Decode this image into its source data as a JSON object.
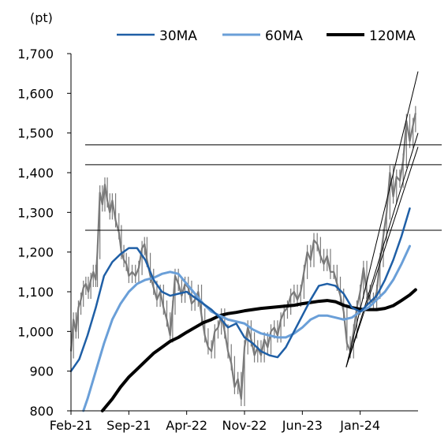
{
  "chart_data": {
    "type": "line",
    "unit_label": "(pt)",
    "y_ticks": [
      "800",
      "900",
      "1,000",
      "1,100",
      "1,200",
      "1,300",
      "1,400",
      "1,500",
      "1,600",
      "1,700"
    ],
    "ylim": [
      800,
      1700
    ],
    "x_tick_labels": [
      "Feb-21",
      "Sep-21",
      "Apr-22",
      "Nov-22",
      "Jun-23",
      "Jan-24"
    ],
    "x_tick_values": [
      0,
      7,
      14,
      21,
      28,
      35
    ],
    "xlim": [
      0,
      42
    ],
    "legend": [
      {
        "name": "30MA",
        "color": "#1f5fa6",
        "width": 2.5
      },
      {
        "name": "60MA",
        "color": "#6a9fd8",
        "width": 3
      },
      {
        "name": "120MA",
        "color": "#000000",
        "width": 4
      }
    ],
    "price": [
      [
        0,
        950
      ],
      [
        0.3,
        1030
      ],
      [
        0.6,
        1000
      ],
      [
        0.9,
        1060
      ],
      [
        1.2,
        1080
      ],
      [
        1.5,
        1110
      ],
      [
        1.8,
        1120
      ],
      [
        2.1,
        1100
      ],
      [
        2.4,
        1130
      ],
      [
        2.7,
        1150
      ],
      [
        3.0,
        1130
      ],
      [
        3.2,
        1200
      ],
      [
        3.5,
        1350
      ],
      [
        3.8,
        1320
      ],
      [
        4.1,
        1370
      ],
      [
        4.4,
        1330
      ],
      [
        4.7,
        1300
      ],
      [
        5.0,
        1330
      ],
      [
        5.4,
        1280
      ],
      [
        5.8,
        1250
      ],
      [
        6.1,
        1200
      ],
      [
        6.4,
        1180
      ],
      [
        6.7,
        1170
      ],
      [
        7.0,
        1140
      ],
      [
        7.4,
        1150
      ],
      [
        7.8,
        1140
      ],
      [
        8.2,
        1160
      ],
      [
        8.6,
        1210
      ],
      [
        8.9,
        1220
      ],
      [
        9.2,
        1180
      ],
      [
        9.6,
        1140
      ],
      [
        10.0,
        1110
      ],
      [
        10.4,
        1080
      ],
      [
        10.8,
        1100
      ],
      [
        11.2,
        1060
      ],
      [
        11.6,
        1030
      ],
      [
        12.0,
        990
      ],
      [
        12.3,
        1060
      ],
      [
        12.6,
        1140
      ],
      [
        13.0,
        1120
      ],
      [
        13.4,
        1090
      ],
      [
        13.8,
        1120
      ],
      [
        14.2,
        1110
      ],
      [
        14.6,
        1070
      ],
      [
        15.0,
        1080
      ],
      [
        15.4,
        1100
      ],
      [
        15.8,
        1040
      ],
      [
        16.2,
        990
      ],
      [
        16.6,
        960
      ],
      [
        17.0,
        950
      ],
      [
        17.4,
        1000
      ],
      [
        17.8,
        1010
      ],
      [
        18.2,
        1040
      ],
      [
        18.6,
        1000
      ],
      [
        19.0,
        950
      ],
      [
        19.4,
        920
      ],
      [
        19.8,
        860
      ],
      [
        20.2,
        880
      ],
      [
        20.6,
        830
      ],
      [
        21.0,
        960
      ],
      [
        21.4,
        1010
      ],
      [
        21.8,
        980
      ],
      [
        22.2,
        940
      ],
      [
        22.6,
        960
      ],
      [
        23.0,
        940
      ],
      [
        23.4,
        980
      ],
      [
        23.8,
        960
      ],
      [
        24.2,
        1000
      ],
      [
        24.6,
        1010
      ],
      [
        25.0,
        990
      ],
      [
        25.4,
        1030
      ],
      [
        25.8,
        1050
      ],
      [
        26.2,
        1060
      ],
      [
        26.6,
        1090
      ],
      [
        27.0,
        1100
      ],
      [
        27.4,
        1080
      ],
      [
        27.8,
        1100
      ],
      [
        28.2,
        1150
      ],
      [
        28.6,
        1200
      ],
      [
        29.0,
        1180
      ],
      [
        29.4,
        1230
      ],
      [
        29.8,
        1220
      ],
      [
        30.2,
        1190
      ],
      [
        30.6,
        1170
      ],
      [
        31.0,
        1190
      ],
      [
        31.4,
        1150
      ],
      [
        31.8,
        1150
      ],
      [
        32.2,
        1120
      ],
      [
        32.6,
        1090
      ],
      [
        33.0,
        1050
      ],
      [
        33.4,
        970
      ],
      [
        33.8,
        950
      ],
      [
        34.2,
        1000
      ],
      [
        34.6,
        1060
      ],
      [
        35.0,
        1100
      ],
      [
        35.4,
        1160
      ],
      [
        35.8,
        1100
      ],
      [
        36.2,
        1080
      ],
      [
        36.6,
        1070
      ],
      [
        37.0,
        1100
      ],
      [
        37.4,
        1180
      ],
      [
        37.8,
        1240
      ],
      [
        38.2,
        1300
      ],
      [
        38.6,
        1400
      ],
      [
        39.0,
        1340
      ],
      [
        39.4,
        1390
      ],
      [
        39.8,
        1380
      ],
      [
        40.2,
        1430
      ],
      [
        40.6,
        1530
      ],
      [
        41.0,
        1480
      ],
      [
        41.4,
        1520
      ],
      [
        41.7,
        1550
      ]
    ],
    "price_color": "#7a7a7a",
    "ma30": [
      [
        0,
        900
      ],
      [
        1,
        930
      ],
      [
        2,
        990
      ],
      [
        3,
        1060
      ],
      [
        4,
        1140
      ],
      [
        5,
        1175
      ],
      [
        6,
        1195
      ],
      [
        7,
        1210
      ],
      [
        8,
        1210
      ],
      [
        9,
        1180
      ],
      [
        10,
        1130
      ],
      [
        11,
        1100
      ],
      [
        12,
        1090
      ],
      [
        13,
        1095
      ],
      [
        14,
        1100
      ],
      [
        15,
        1085
      ],
      [
        16,
        1070
      ],
      [
        17,
        1055
      ],
      [
        18,
        1035
      ],
      [
        19,
        1010
      ],
      [
        20,
        1020
      ],
      [
        21,
        985
      ],
      [
        22,
        970
      ],
      [
        23,
        950
      ],
      [
        24,
        940
      ],
      [
        25,
        935
      ],
      [
        26,
        960
      ],
      [
        27,
        1000
      ],
      [
        28,
        1040
      ],
      [
        29,
        1080
      ],
      [
        30,
        1115
      ],
      [
        31,
        1120
      ],
      [
        32,
        1115
      ],
      [
        33,
        1095
      ],
      [
        34,
        1060
      ],
      [
        35,
        1050
      ],
      [
        36,
        1070
      ],
      [
        37,
        1090
      ],
      [
        38,
        1130
      ],
      [
        39,
        1180
      ],
      [
        40,
        1240
      ],
      [
        41,
        1310
      ]
    ],
    "ma60": [
      [
        1.5,
        800
      ],
      [
        2,
        830
      ],
      [
        3,
        900
      ],
      [
        4,
        970
      ],
      [
        5,
        1030
      ],
      [
        6,
        1070
      ],
      [
        7,
        1100
      ],
      [
        8,
        1120
      ],
      [
        9,
        1130
      ],
      [
        10,
        1135
      ],
      [
        11,
        1145
      ],
      [
        12,
        1150
      ],
      [
        13,
        1145
      ],
      [
        14,
        1120
      ],
      [
        15,
        1095
      ],
      [
        16,
        1070
      ],
      [
        17,
        1050
      ],
      [
        18,
        1040
      ],
      [
        19,
        1030
      ],
      [
        20,
        1025
      ],
      [
        21,
        1020
      ],
      [
        22,
        1005
      ],
      [
        23,
        995
      ],
      [
        24,
        990
      ],
      [
        25,
        985
      ],
      [
        26,
        985
      ],
      [
        27,
        995
      ],
      [
        28,
        1010
      ],
      [
        29,
        1030
      ],
      [
        30,
        1040
      ],
      [
        31,
        1040
      ],
      [
        32,
        1035
      ],
      [
        33,
        1030
      ],
      [
        34,
        1035
      ],
      [
        35,
        1050
      ],
      [
        36,
        1060
      ],
      [
        37,
        1080
      ],
      [
        38,
        1100
      ],
      [
        39,
        1130
      ],
      [
        40,
        1170
      ],
      [
        41,
        1215
      ]
    ],
    "ma120": [
      [
        3.8,
        800
      ],
      [
        5,
        830
      ],
      [
        6,
        860
      ],
      [
        7,
        885
      ],
      [
        8,
        905
      ],
      [
        9,
        925
      ],
      [
        10,
        945
      ],
      [
        11,
        960
      ],
      [
        12,
        975
      ],
      [
        13,
        985
      ],
      [
        14,
        998
      ],
      [
        15,
        1010
      ],
      [
        16,
        1022
      ],
      [
        17,
        1030
      ],
      [
        18,
        1040
      ],
      [
        19,
        1045
      ],
      [
        20,
        1048
      ],
      [
        21,
        1052
      ],
      [
        22,
        1055
      ],
      [
        23,
        1058
      ],
      [
        24,
        1060
      ],
      [
        25,
        1062
      ],
      [
        26,
        1064
      ],
      [
        27,
        1066
      ],
      [
        28,
        1070
      ],
      [
        29,
        1073
      ],
      [
        30,
        1076
      ],
      [
        31,
        1078
      ],
      [
        32,
        1075
      ],
      [
        33,
        1066
      ],
      [
        34,
        1060
      ],
      [
        35,
        1056
      ],
      [
        36,
        1055
      ],
      [
        37,
        1055
      ],
      [
        38,
        1058
      ],
      [
        39,
        1065
      ],
      [
        40,
        1078
      ],
      [
        41,
        1092
      ],
      [
        41.7,
        1105
      ]
    ],
    "horizontal_lines": [
      1255,
      1420,
      1470
    ],
    "trend_lines": [
      [
        [
          33.3,
          910
        ],
        [
          42,
          1655
        ]
      ],
      [
        [
          33.3,
          910
        ],
        [
          42,
          1500
        ]
      ],
      [
        [
          33.3,
          910
        ],
        [
          42,
          1465
        ]
      ]
    ]
  }
}
